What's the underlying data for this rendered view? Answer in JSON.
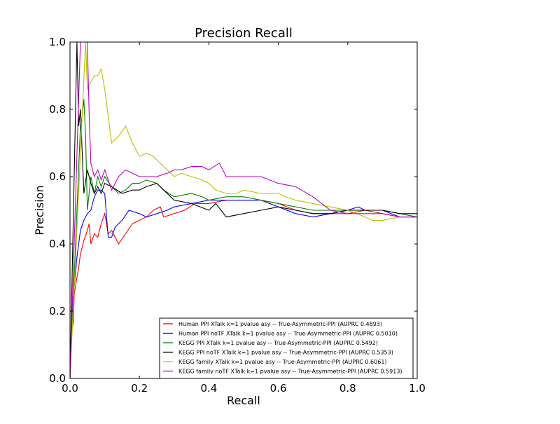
{
  "chart_data": {
    "type": "line",
    "title": "Precision Recall",
    "xlabel": "Recall",
    "ylabel": "Precision",
    "xlim": [
      0.0,
      1.0
    ],
    "ylim": [
      0.0,
      1.0
    ],
    "xticks": [
      "0.0",
      "0.2",
      "0.4",
      "0.6",
      "0.8",
      "1.0"
    ],
    "yticks": [
      "0.0",
      "0.2",
      "0.4",
      "0.6",
      "0.8",
      "1.0"
    ],
    "grid": false,
    "legend_position": "bottom-right",
    "series": [
      {
        "name": "Human PPI XTalk k=1 pvalue asy -- True-Asymmetric-PPI (AUPRC 0.4893)",
        "color": "#ff0000",
        "points": [
          [
            0.0,
            0.0
          ],
          [
            0.005,
            0.14
          ],
          [
            0.01,
            0.17
          ],
          [
            0.012,
            0.25
          ],
          [
            0.02,
            0.3
          ],
          [
            0.025,
            0.33
          ],
          [
            0.03,
            0.37
          ],
          [
            0.04,
            0.41
          ],
          [
            0.05,
            0.44
          ],
          [
            0.055,
            0.46
          ],
          [
            0.06,
            0.4
          ],
          [
            0.07,
            0.43
          ],
          [
            0.08,
            0.42
          ],
          [
            0.09,
            0.46
          ],
          [
            0.1,
            0.49
          ],
          [
            0.11,
            0.43
          ],
          [
            0.12,
            0.44
          ],
          [
            0.14,
            0.4
          ],
          [
            0.16,
            0.43
          ],
          [
            0.18,
            0.46
          ],
          [
            0.2,
            0.47
          ],
          [
            0.22,
            0.48
          ],
          [
            0.24,
            0.5
          ],
          [
            0.26,
            0.51
          ],
          [
            0.27,
            0.48
          ],
          [
            0.3,
            0.49
          ],
          [
            0.33,
            0.5
          ],
          [
            0.36,
            0.52
          ],
          [
            0.4,
            0.52
          ],
          [
            0.45,
            0.53
          ],
          [
            0.5,
            0.53
          ],
          [
            0.55,
            0.53
          ],
          [
            0.6,
            0.52
          ],
          [
            0.65,
            0.5
          ],
          [
            0.7,
            0.49
          ],
          [
            0.75,
            0.49
          ],
          [
            0.8,
            0.49
          ],
          [
            0.85,
            0.5
          ],
          [
            0.9,
            0.49
          ],
          [
            0.95,
            0.48
          ],
          [
            1.0,
            0.48
          ]
        ]
      },
      {
        "name": "Human PPI noTF XTalk k=1 pvalue asy -- True-Asymmetric-PPI (AUPRC 0.5010)",
        "color": "#0000ff",
        "points": [
          [
            0.0,
            0.0
          ],
          [
            0.005,
            0.2
          ],
          [
            0.01,
            0.25
          ],
          [
            0.02,
            0.36
          ],
          [
            0.03,
            0.44
          ],
          [
            0.04,
            0.47
          ],
          [
            0.05,
            0.49
          ],
          [
            0.06,
            0.5
          ],
          [
            0.07,
            0.54
          ],
          [
            0.08,
            0.56
          ],
          [
            0.09,
            0.56
          ],
          [
            0.1,
            0.55
          ],
          [
            0.11,
            0.42
          ],
          [
            0.12,
            0.42
          ],
          [
            0.13,
            0.45
          ],
          [
            0.15,
            0.47
          ],
          [
            0.17,
            0.5
          ],
          [
            0.2,
            0.49
          ],
          [
            0.22,
            0.48
          ],
          [
            0.25,
            0.49
          ],
          [
            0.28,
            0.5
          ],
          [
            0.3,
            0.51
          ],
          [
            0.35,
            0.52
          ],
          [
            0.4,
            0.53
          ],
          [
            0.45,
            0.53
          ],
          [
            0.5,
            0.53
          ],
          [
            0.55,
            0.53
          ],
          [
            0.6,
            0.51
          ],
          [
            0.65,
            0.49
          ],
          [
            0.7,
            0.48
          ],
          [
            0.75,
            0.49
          ],
          [
            0.8,
            0.5
          ],
          [
            0.83,
            0.51
          ],
          [
            0.85,
            0.5
          ],
          [
            0.9,
            0.5
          ],
          [
            0.95,
            0.48
          ],
          [
            1.0,
            0.48
          ]
        ]
      },
      {
        "name": "KEGG PPI XTalk k=1 pvalue asy -- True-Asymmetric-PPI (AUPRC 0.5492)",
        "color": "#008000",
        "points": [
          [
            0.0,
            0.0
          ],
          [
            0.02,
            0.5
          ],
          [
            0.03,
            0.75
          ],
          [
            0.035,
            0.78
          ],
          [
            0.04,
            0.83
          ],
          [
            0.045,
            0.72
          ],
          [
            0.05,
            0.5
          ],
          [
            0.06,
            0.6
          ],
          [
            0.07,
            0.55
          ],
          [
            0.08,
            0.6
          ],
          [
            0.09,
            0.57
          ],
          [
            0.1,
            0.6
          ],
          [
            0.12,
            0.57
          ],
          [
            0.14,
            0.55
          ],
          [
            0.16,
            0.56
          ],
          [
            0.18,
            0.58
          ],
          [
            0.2,
            0.58
          ],
          [
            0.22,
            0.59
          ],
          [
            0.25,
            0.58
          ],
          [
            0.27,
            0.56
          ],
          [
            0.3,
            0.54
          ],
          [
            0.35,
            0.55
          ],
          [
            0.38,
            0.54
          ],
          [
            0.4,
            0.53
          ],
          [
            0.45,
            0.54
          ],
          [
            0.5,
            0.54
          ],
          [
            0.55,
            0.53
          ],
          [
            0.6,
            0.52
          ],
          [
            0.65,
            0.51
          ],
          [
            0.7,
            0.5
          ],
          [
            0.75,
            0.5
          ],
          [
            0.8,
            0.5
          ],
          [
            0.85,
            0.5
          ],
          [
            0.9,
            0.5
          ],
          [
            0.95,
            0.49
          ],
          [
            1.0,
            0.48
          ]
        ]
      },
      {
        "name": "KEGG PPI noTF XTalk k=1 pvalue asy -- True-Asymmetric-PPI (AUPRC 0.5353)",
        "color": "#000000",
        "points": [
          [
            0.0,
            0.0
          ],
          [
            0.02,
            1.0
          ],
          [
            0.025,
            0.75
          ],
          [
            0.03,
            0.8
          ],
          [
            0.04,
            0.55
          ],
          [
            0.05,
            0.62
          ],
          [
            0.06,
            0.58
          ],
          [
            0.07,
            0.55
          ],
          [
            0.08,
            0.57
          ],
          [
            0.09,
            0.55
          ],
          [
            0.1,
            0.58
          ],
          [
            0.12,
            0.57
          ],
          [
            0.15,
            0.55
          ],
          [
            0.18,
            0.56
          ],
          [
            0.2,
            0.56
          ],
          [
            0.22,
            0.57
          ],
          [
            0.25,
            0.58
          ],
          [
            0.27,
            0.56
          ],
          [
            0.3,
            0.53
          ],
          [
            0.35,
            0.52
          ],
          [
            0.4,
            0.5
          ],
          [
            0.42,
            0.52
          ],
          [
            0.45,
            0.48
          ],
          [
            0.5,
            0.49
          ],
          [
            0.55,
            0.5
          ],
          [
            0.6,
            0.51
          ],
          [
            0.65,
            0.5
          ],
          [
            0.7,
            0.49
          ],
          [
            0.75,
            0.49
          ],
          [
            0.8,
            0.5
          ],
          [
            0.85,
            0.5
          ],
          [
            0.9,
            0.5
          ],
          [
            0.95,
            0.49
          ],
          [
            1.0,
            0.49
          ]
        ]
      },
      {
        "name": "KEGG family XTalk k=1 pvalue asy -- True-Asymmetric-PPI (AUPRC 0.6061)",
        "color": "#bfbf00",
        "points": [
          [
            0.0,
            0.0
          ],
          [
            0.045,
            1.0
          ],
          [
            0.05,
            0.86
          ],
          [
            0.07,
            0.9
          ],
          [
            0.08,
            0.9
          ],
          [
            0.09,
            0.92
          ],
          [
            0.1,
            0.86
          ],
          [
            0.11,
            0.78
          ],
          [
            0.12,
            0.7
          ],
          [
            0.14,
            0.72
          ],
          [
            0.16,
            0.75
          ],
          [
            0.18,
            0.7
          ],
          [
            0.2,
            0.66
          ],
          [
            0.22,
            0.67
          ],
          [
            0.24,
            0.66
          ],
          [
            0.26,
            0.64
          ],
          [
            0.28,
            0.62
          ],
          [
            0.3,
            0.6
          ],
          [
            0.32,
            0.61
          ],
          [
            0.35,
            0.6
          ],
          [
            0.38,
            0.59
          ],
          [
            0.4,
            0.58
          ],
          [
            0.42,
            0.56
          ],
          [
            0.45,
            0.55
          ],
          [
            0.48,
            0.55
          ],
          [
            0.5,
            0.56
          ],
          [
            0.55,
            0.55
          ],
          [
            0.6,
            0.55
          ],
          [
            0.62,
            0.54
          ],
          [
            0.65,
            0.53
          ],
          [
            0.7,
            0.52
          ],
          [
            0.75,
            0.51
          ],
          [
            0.8,
            0.5
          ],
          [
            0.85,
            0.48
          ],
          [
            0.87,
            0.47
          ],
          [
            0.9,
            0.47
          ],
          [
            0.95,
            0.48
          ],
          [
            1.0,
            0.48
          ]
        ]
      },
      {
        "name": "KEGG family noTF XTalk k=1 pvalue asy -- True-Asymmetric-PPI (AUPRC 0.5913)",
        "color": "#bf00bf",
        "points": [
          [
            0.0,
            0.0
          ],
          [
            0.03,
            1.0
          ],
          [
            0.05,
            1.0
          ],
          [
            0.055,
            0.79
          ],
          [
            0.06,
            0.64
          ],
          [
            0.07,
            0.6
          ],
          [
            0.08,
            0.62
          ],
          [
            0.09,
            0.59
          ],
          [
            0.1,
            0.62
          ],
          [
            0.12,
            0.56
          ],
          [
            0.14,
            0.6
          ],
          [
            0.16,
            0.62
          ],
          [
            0.18,
            0.61
          ],
          [
            0.2,
            0.6
          ],
          [
            0.22,
            0.6
          ],
          [
            0.25,
            0.6
          ],
          [
            0.28,
            0.61
          ],
          [
            0.3,
            0.62
          ],
          [
            0.32,
            0.62
          ],
          [
            0.35,
            0.63
          ],
          [
            0.38,
            0.63
          ],
          [
            0.4,
            0.62
          ],
          [
            0.43,
            0.64
          ],
          [
            0.45,
            0.6
          ],
          [
            0.5,
            0.6
          ],
          [
            0.55,
            0.6
          ],
          [
            0.6,
            0.58
          ],
          [
            0.65,
            0.57
          ],
          [
            0.7,
            0.54
          ],
          [
            0.75,
            0.5
          ],
          [
            0.8,
            0.49
          ],
          [
            0.85,
            0.49
          ],
          [
            0.9,
            0.49
          ],
          [
            0.95,
            0.48
          ],
          [
            1.0,
            0.48
          ]
        ]
      }
    ]
  }
}
